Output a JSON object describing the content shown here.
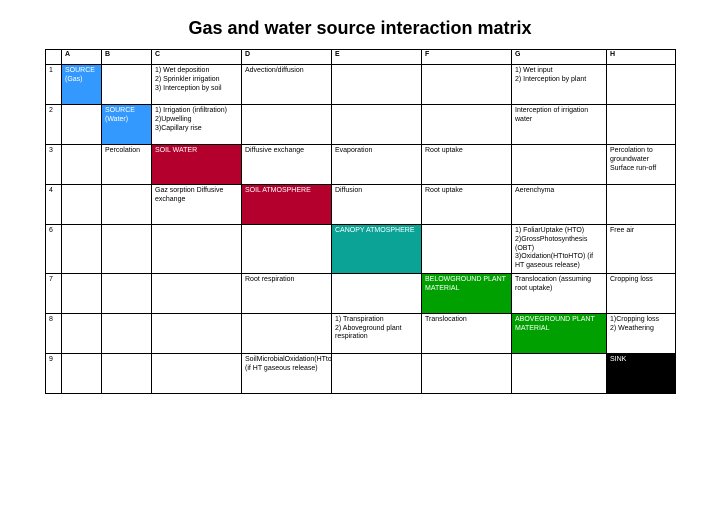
{
  "title": "Gas and water source interaction matrix",
  "colors": {
    "source_gas": "#3399ff",
    "source_water": "#3399ff",
    "soil_water": "#b3002d",
    "soil_atm": "#b3002d",
    "canopy_atm": "#0aa396",
    "below_plant": "#00a000",
    "above_plant": "#00a000",
    "sink": "#000000"
  },
  "font": {
    "title_size_pt": 18,
    "cell_size_pt": 7,
    "family": "Trebuchet MS"
  },
  "columns": [
    "A",
    "B",
    "C",
    "D",
    "E",
    "F",
    "G",
    "H"
  ],
  "row_index": [
    "1",
    "2",
    "3",
    "4",
    "6",
    "7",
    "8",
    "9"
  ],
  "rows": {
    "r1": {
      "A": {
        "text": "SOURCE (Gas)",
        "hl": "source_gas"
      },
      "C": "1) Wet deposition\n2) Sprinkler irrigation\n3) Interception by soil",
      "D": "Advection/diffusion",
      "G": "1) Wet input\n2) Interception by plant"
    },
    "r2": {
      "B": {
        "text": "SOURCE (Water)",
        "hl": "source_water"
      },
      "C": "1) Irrigation (infiltration)\n2)Upwelling\n3)Capillary rise",
      "G": "Interception of irrigation water"
    },
    "r3": {
      "B": "Percolation",
      "C": {
        "text": "SOIL WATER",
        "hl": "soil_water"
      },
      "D": "Diffusive exchange",
      "E": "Evaporation",
      "F": "Root uptake",
      "H": "Percolation to groundwater Surface run-off"
    },
    "r4": {
      "C": "Gaz sorption Diffusive exchange",
      "D": {
        "text": "SOIL ATMOSPHERE",
        "hl": "soil_atm"
      },
      "E": "Diffusion",
      "F": "Root uptake",
      "G": "Aerenchyma"
    },
    "r6": {
      "E": {
        "text": "CANOPY ATMOSPHERE",
        "hl": "canopy_atm"
      },
      "G": "1) FoliarUptake (HTO)\n2)GrossPhotosynthesis (OBT)\n3)Oxidation(HTtoHTO) (if HT gaseous release)",
      "H": "Free air"
    },
    "r7": {
      "D": "Root respiration",
      "F": {
        "text": "BELOWGROUND PLANT MATERIAL",
        "hl": "below_plant"
      },
      "G": "Translocation (assuming root uptake)",
      "H": "Cropping loss"
    },
    "r8": {
      "E": "1) Transpiration\n2) Aboveground plant respiration",
      "F": "Translocation",
      "G": {
        "text": "ABOVEGROUND PLANT MATERIAL",
        "hl": "above_plant"
      },
      "H": "1)Cropping loss\n2) Weathering"
    },
    "r9": {
      "D": "SoilMicrobialOxidation(HTtoHTO) (if HT gaseous release)",
      "H": {
        "text": "SINK",
        "hl": "sink"
      }
    }
  }
}
